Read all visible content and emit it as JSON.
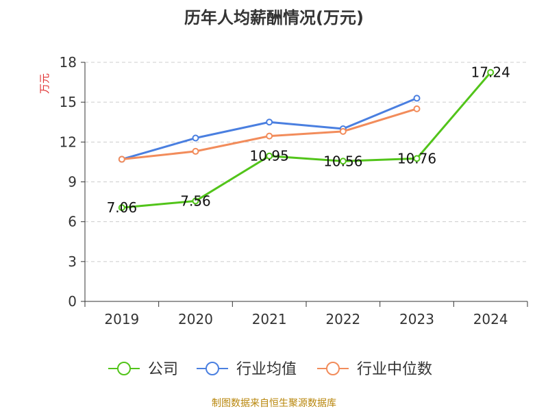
{
  "chart_data": {
    "type": "line",
    "title": "历年人均薪酬情况(万元)",
    "ylabel": "万元",
    "xlabel": "",
    "categories": [
      "2019",
      "2020",
      "2021",
      "2022",
      "2023",
      "2024"
    ],
    "ylim": [
      0,
      18
    ],
    "yticks": [
      0,
      3,
      6,
      9,
      12,
      15,
      18
    ],
    "grid": true,
    "legend_position": "bottom",
    "series": [
      {
        "name": "公司",
        "color": "#52c41a",
        "values": [
          7.06,
          7.56,
          10.95,
          10.56,
          10.76,
          17.24
        ],
        "labels": [
          "7.06",
          "7.56",
          "10.95",
          "10.56",
          "10.76",
          "17.24"
        ]
      },
      {
        "name": "行业均值",
        "color": "#4a7fe0",
        "values": [
          10.7,
          12.3,
          13.5,
          13.0,
          15.3,
          null
        ]
      },
      {
        "name": "行业中位数",
        "color": "#f28c5b",
        "values": [
          10.7,
          11.3,
          12.45,
          12.8,
          14.5,
          null
        ]
      }
    ]
  },
  "footer": {
    "source": "制图数据来自恒生聚源数据库"
  },
  "colors": {
    "axis": "#333333",
    "grid": "#cccccc",
    "ylabel": "#e03030",
    "source": "#b8860b"
  }
}
